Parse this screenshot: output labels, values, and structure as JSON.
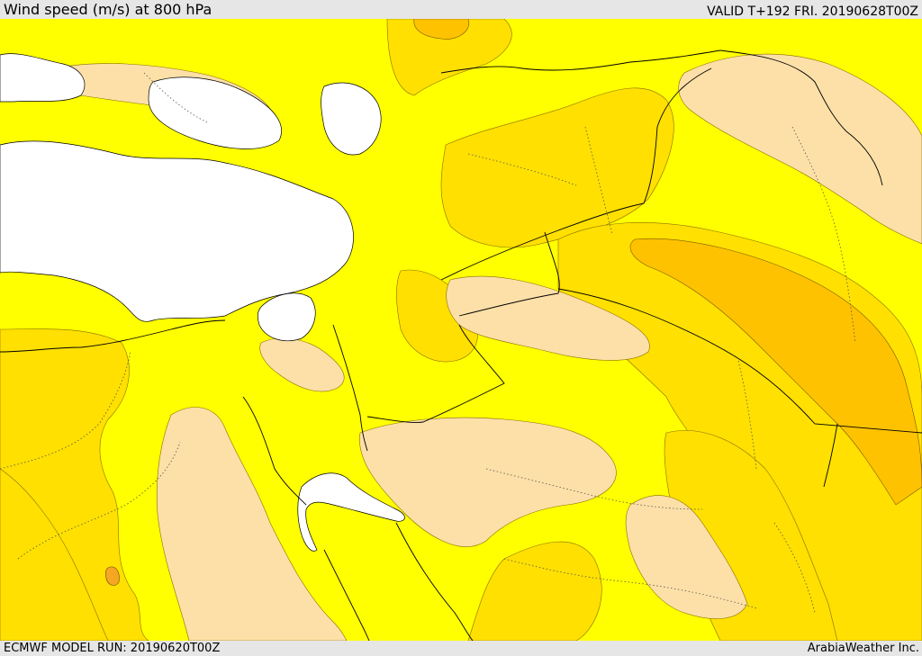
{
  "header": {
    "title": "Wind speed (m/s) at 800 hPa",
    "valid": "VALID T+192 FRI. 20190628T00Z"
  },
  "footer": {
    "model_run": "ECMWF MODEL RUN: 20190620T00Z",
    "credit": "ArabiaWeather Inc."
  },
  "map": {
    "colors": {
      "background_band": "#ffff00",
      "light_band": "#fde0a8",
      "mid_band": "#ffe000",
      "strong_band": "#ffc200",
      "peak_band": "#f5a623",
      "no_data": "#ffffff",
      "border": "#000000"
    }
  }
}
